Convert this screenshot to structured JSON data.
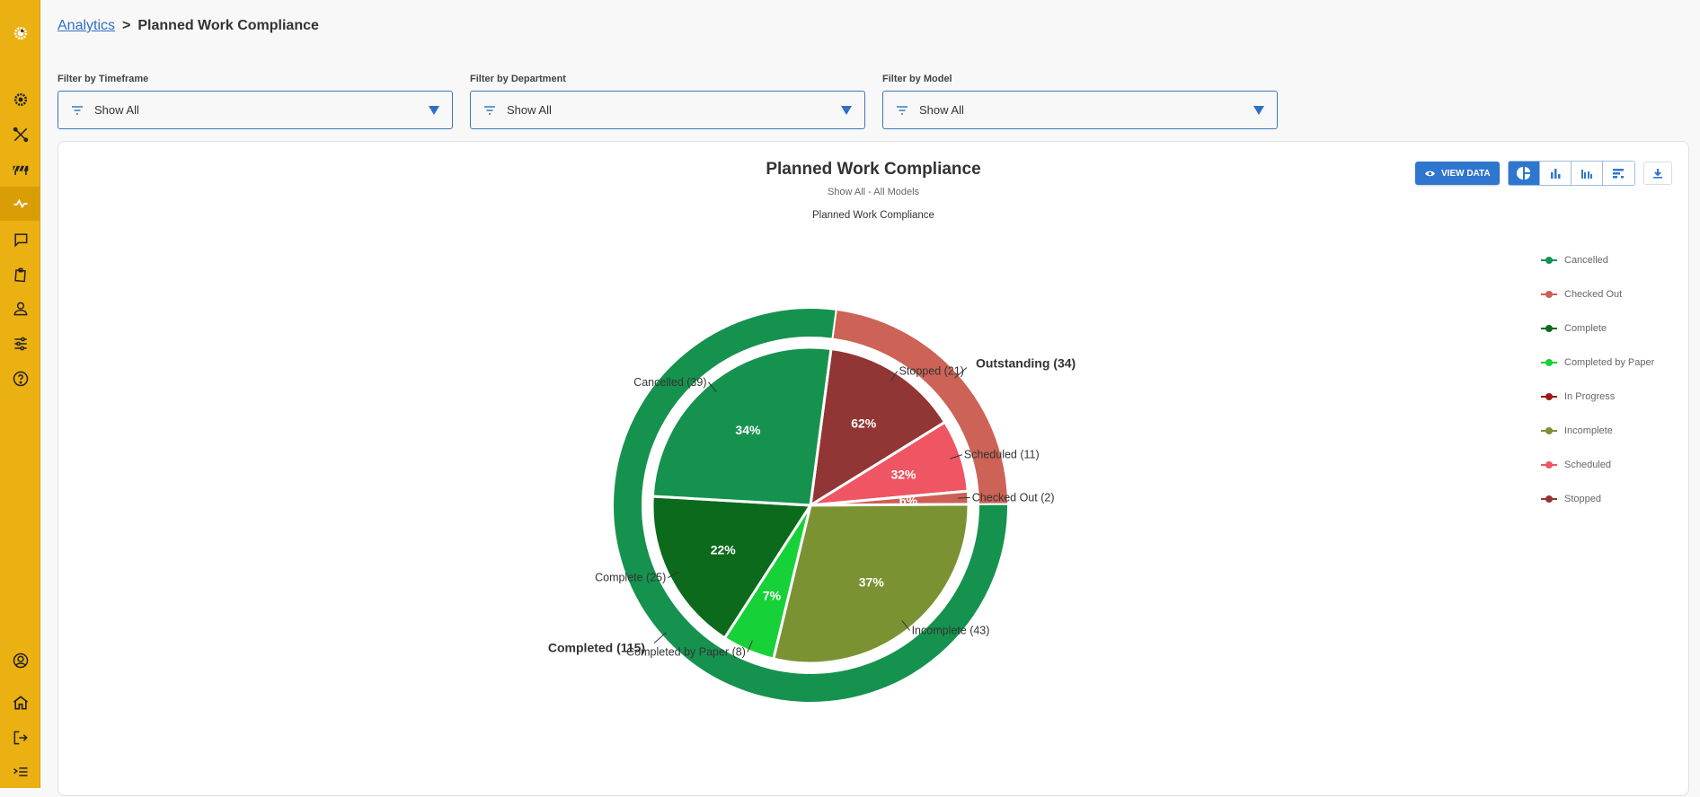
{
  "sidebar": {
    "items": [
      {
        "name": "logo",
        "icon": "logo-gear-icon"
      },
      {
        "name": "settings",
        "icon": "gear-icon"
      },
      {
        "name": "tools",
        "icon": "tools-icon"
      },
      {
        "name": "barrier",
        "icon": "barrier-icon"
      },
      {
        "name": "analytics",
        "icon": "pulse-icon",
        "active": true
      },
      {
        "name": "messages",
        "icon": "chat-icon"
      },
      {
        "name": "clipboard",
        "icon": "clipboard-icon"
      },
      {
        "name": "users",
        "icon": "user-icon"
      },
      {
        "name": "adjustments",
        "icon": "sliders-icon"
      },
      {
        "name": "help",
        "icon": "help-icon"
      },
      {
        "name": "profile",
        "icon": "account-icon"
      },
      {
        "name": "home",
        "icon": "home-icon"
      },
      {
        "name": "logout",
        "icon": "logout-icon"
      },
      {
        "name": "collapse",
        "icon": "menu-collapse-icon"
      }
    ]
  },
  "breadcrumb": {
    "parent": "Analytics",
    "separator": ">",
    "current": "Planned Work Compliance"
  },
  "filters": [
    {
      "label": "Filter by Timeframe",
      "value": "Show All"
    },
    {
      "label": "Filter by Department",
      "value": "Show All"
    },
    {
      "label": "Filter by Model",
      "value": "Show All"
    }
  ],
  "toolbar": {
    "view_data_label": "VIEW DATA",
    "chart_types": [
      "pie",
      "bar",
      "grouped-bar",
      "horizontal-bar"
    ],
    "active_chart_type": "pie",
    "download": "download"
  },
  "colors": {
    "accent": "#2f76cf",
    "sidebar": "#ebb012"
  },
  "chart_data": {
    "type": "pie",
    "title": "Planned Work Compliance",
    "subtitle": "Show All - All Models",
    "series_title": "Planned Work Compliance",
    "legend_position": "right",
    "legend": [
      {
        "name": "Cancelled",
        "color": "#16924f"
      },
      {
        "name": "Checked Out",
        "color": "#cd5f55"
      },
      {
        "name": "Complete",
        "color": "#0b6a1b"
      },
      {
        "name": "Completed by Paper",
        "color": "#17d139"
      },
      {
        "name": "In Progress",
        "color": "#9b1a1a"
      },
      {
        "name": "Incomplete",
        "color": "#7a9232"
      },
      {
        "name": "Scheduled",
        "color": "#ef5562"
      },
      {
        "name": "Stopped",
        "color": "#923535"
      }
    ],
    "outer": [
      {
        "name": "Outstanding",
        "value": 34,
        "label": "Outstanding (34)",
        "color": "#cd6256"
      },
      {
        "name": "Completed",
        "value": 115,
        "label": "Completed (115)",
        "color": "#16924f"
      }
    ],
    "inner": [
      {
        "name": "Stopped",
        "value": 21,
        "percent": "62%",
        "label": "Stopped (21)",
        "color": "#923535"
      },
      {
        "name": "Scheduled",
        "value": 11,
        "percent": "32%",
        "label": "Scheduled (11)",
        "color": "#ef5562"
      },
      {
        "name": "Checked Out",
        "value": 2,
        "percent": "6%",
        "label": "Checked Out (2)",
        "color": "#cd5f55"
      },
      {
        "name": "Incomplete",
        "value": 43,
        "percent": "37%",
        "label": "Incomplete (43)",
        "color": "#7a9232"
      },
      {
        "name": "Completed by Paper",
        "value": 8,
        "percent": "7%",
        "label": "Completed by Paper (8)",
        "color": "#17d139"
      },
      {
        "name": "Complete",
        "value": 25,
        "percent": "22%",
        "label": "Complete (25)",
        "color": "#0b6a1b"
      },
      {
        "name": "Cancelled",
        "value": 39,
        "percent": "34%",
        "label": "Cancelled (39)",
        "color": "#16924f"
      }
    ]
  }
}
